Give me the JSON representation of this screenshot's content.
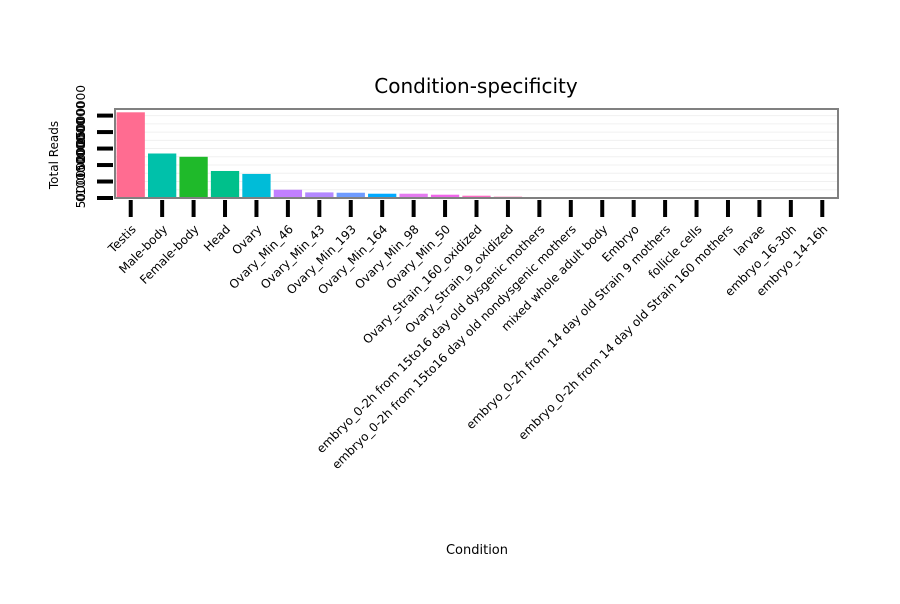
{
  "chart_data": {
    "type": "bar",
    "title": "Condition-specificity",
    "xlabel": "Condition",
    "ylabel": "Total Reads",
    "categories": [
      "Testis",
      "Male-body",
      "Female-body",
      "Head",
      "Ovary",
      "Ovary_Min_46",
      "Ovary_Min_43",
      "Ovary_Min_193",
      "Ovary_Min_164",
      "Ovary_Min_98",
      "Ovary_Min_50",
      "Ovary_Strain_160_oxidized",
      "Ovary_Strain_9_oxidized",
      "embryo_0-2h from 15to16 day old dysgenic mothers",
      "embryo_0-2h from 15to16 day old nondysgenic mothers",
      "mixed whole adult body",
      "Embryo",
      "embryo_0-2h from 14 day old Strain 9 mothers",
      "follicle cells",
      "embryo_0-2h from 14 day old Strain 160 mothers",
      "larvae",
      "embryo_16-30h",
      "embryo_14-16h"
    ],
    "values": [
      26000000,
      13500000,
      12500000,
      8200000,
      7300000,
      2500000,
      1700000,
      1600000,
      1300000,
      1300000,
      1000000,
      700000,
      400000,
      300000,
      250000,
      0,
      0,
      0,
      0,
      0,
      0,
      0,
      0
    ],
    "colors": [
      "#FF6C91",
      "#00C1AA",
      "#1FBA2A",
      "#00C08B",
      "#00BCD8",
      "#C17FFF",
      "#B388FF",
      "#6E9BFF",
      "#00A9FF",
      "#E47BF0",
      "#F066EA",
      "#FF6CC5",
      "#FF63A8",
      "#BF9A00",
      "#A3A500",
      "#F8766D",
      "#E7851E",
      "#D09400",
      "#7CAE00",
      "#35B779",
      "#00BA38",
      "#00B0F6",
      "#619CFF"
    ],
    "ylim": [
      0,
      27000000
    ],
    "yticks": [
      {
        "value": 0,
        "label": "0"
      },
      {
        "value": 5000000,
        "label": "5000000"
      },
      {
        "value": 10000000,
        "label": "10000000"
      },
      {
        "value": 15000000,
        "label": "15000000"
      },
      {
        "value": 20000000,
        "label": "20000000"
      },
      {
        "value": 25000000,
        "label": "25000000"
      }
    ],
    "grid": true,
    "legend": "none"
  }
}
